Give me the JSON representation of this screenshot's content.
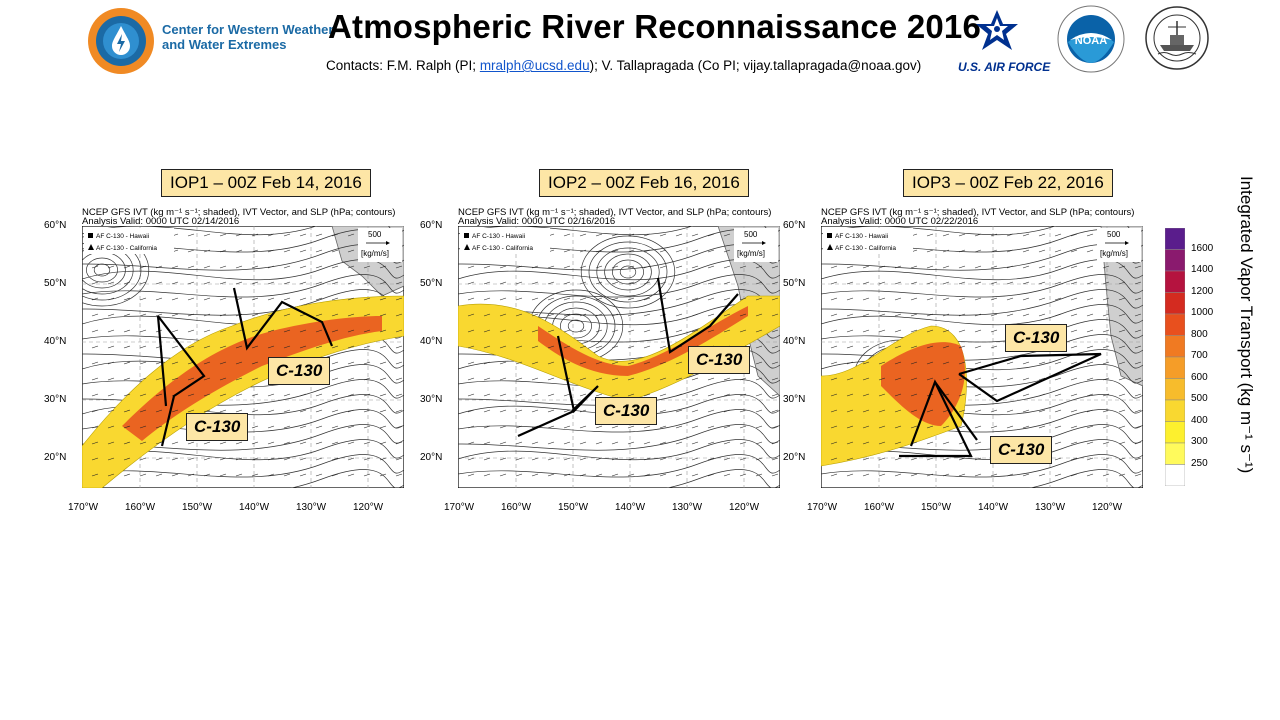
{
  "header": {
    "title": "Atmospheric River Reconnaissance 2016",
    "org_line1": "Center for Western Weather",
    "org_line2": "and Water Extremes",
    "contacts_prefix": "Contacts: F.M.  Ralph (PI; ",
    "contacts_email": "mralph@ucsd.edu",
    "contacts_suffix": ");  V. Tallapragada (Co PI; vijay.tallapragada@noaa.gov)",
    "air_force_label": "U.S. AIR FORCE",
    "noaa_label": "NOAA"
  },
  "panels": [
    {
      "label": "IOP1 – 00Z Feb 14, 2016",
      "map_title": "NCEP GFS IVT (kg m⁻¹ s⁻¹; shaded), IVT Vector, and SLP (hPa; contours)",
      "valid": "Analysis Valid: 0000 UTC 02/14/2016",
      "aircraft": "C-130"
    },
    {
      "label": "IOP2 – 00Z Feb 16, 2016",
      "map_title": "NCEP GFS IVT (kg m⁻¹ s⁻¹; shaded), IVT Vector, and SLP (hPa; contours)",
      "valid": "Analysis Valid: 0000 UTC 02/16/2016",
      "aircraft": "C-130"
    },
    {
      "label": "IOP3 – 00Z Feb 22, 2016",
      "map_title": "NCEP GFS IVT (kg m⁻¹ s⁻¹; shaded), IVT Vector, and SLP (hPa; contours)",
      "valid": "Analysis Valid: 0000 UTC 02/22/2016",
      "aircraft": "C-130"
    }
  ],
  "map_legend": {
    "hawaii": "AF C-130 - Hawaii",
    "california": "AF C-130 - California",
    "ref_vector_value": "500",
    "ref_vector_unit": "[kg/m/s]"
  },
  "lat_ticks": [
    "60°N",
    "50°N",
    "40°N",
    "30°N",
    "20°N"
  ],
  "lon_ticks": [
    "170°W",
    "160°W",
    "150°W",
    "140°W",
    "130°W",
    "120°W"
  ],
  "colorbar": {
    "title": "Integrated Vapor Transport (kg m⁻¹ s⁻¹)",
    "levels": [
      "1600",
      "1400",
      "1200",
      "1000",
      "800",
      "700",
      "600",
      "500",
      "400",
      "300",
      "250"
    ],
    "colors": [
      "#5a1d8c",
      "#8a1a6e",
      "#b5133f",
      "#d42b20",
      "#e8501e",
      "#f07a22",
      "#f59d28",
      "#f7bc2c",
      "#f9d830",
      "#fdf02e",
      "#fffa5c",
      "#ffffff"
    ]
  }
}
